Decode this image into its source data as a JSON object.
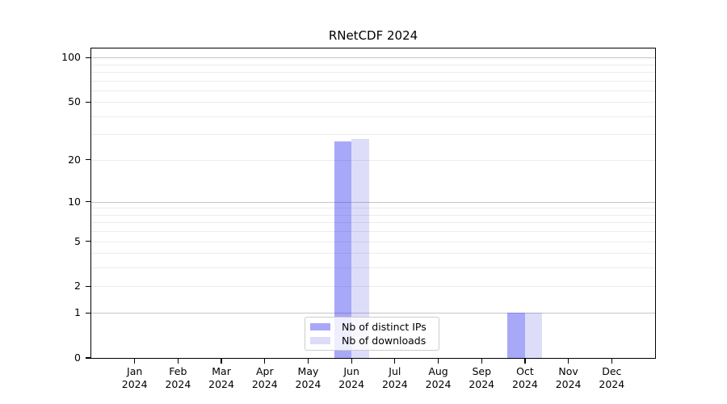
{
  "chart_data": {
    "type": "bar",
    "title": "RNetCDF 2024",
    "categories": [
      "Jan 2024",
      "Feb 2024",
      "Mar 2024",
      "Apr 2024",
      "May 2024",
      "Jun 2024",
      "Jul 2024",
      "Aug 2024",
      "Sep 2024",
      "Oct 2024",
      "Nov 2024",
      "Dec 2024"
    ],
    "series": [
      {
        "name": "Nb of distinct IPs",
        "color": "rgba(38,38,238,0.40)",
        "color_on_white": "#a8a8f8",
        "values": [
          0,
          0,
          0,
          0,
          0,
          27,
          0,
          0,
          0,
          1,
          0,
          0
        ]
      },
      {
        "name": "Nb of downloads",
        "color": "rgba(25,25,222,0.15)",
        "color_on_white": "#dcdcf9",
        "values": [
          0,
          0,
          0,
          0,
          0,
          28,
          0,
          0,
          0,
          1,
          0,
          0
        ]
      }
    ],
    "xlabel": "",
    "ylabel": "",
    "yscale": "log1p",
    "ylim": [
      0,
      115
    ],
    "yticks": [
      0,
      1,
      2,
      5,
      10,
      20,
      50,
      100
    ],
    "major_gridlines": [
      1,
      10,
      100
    ],
    "minor_gridlines": [
      2,
      3,
      4,
      5,
      6,
      7,
      8,
      9,
      20,
      30,
      40,
      50,
      60,
      70,
      80,
      90
    ],
    "legend_position": "lower center",
    "grid": true
  },
  "colors": {
    "background": "#ffffff",
    "axis_frame": "#000000",
    "minor_grid": "#ececec",
    "major_grid": "#c6c6c6",
    "text": "#000000",
    "legend_border": "#cccccc"
  }
}
